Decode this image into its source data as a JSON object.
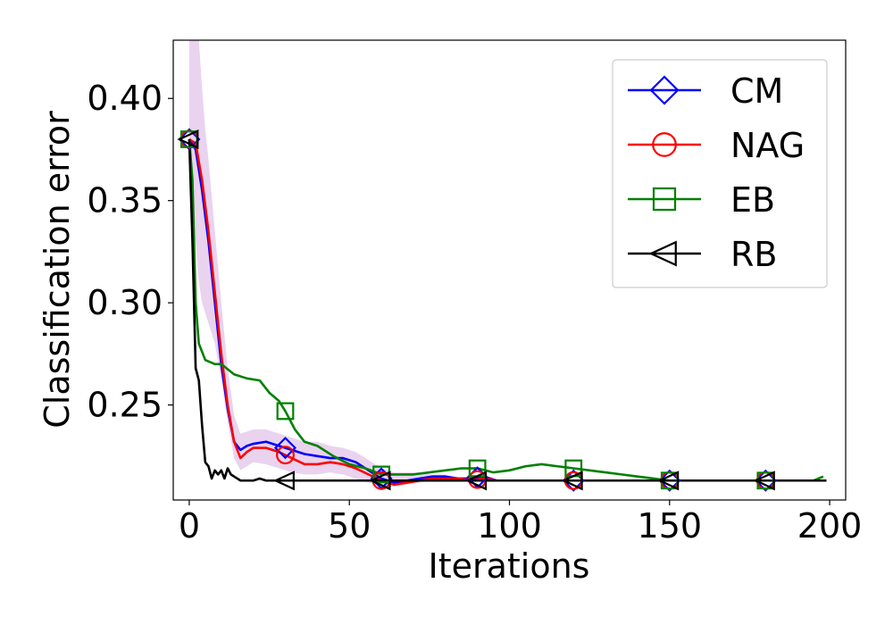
{
  "chart_data": {
    "type": "line",
    "xlabel": "Iterations",
    "ylabel": "Classification error",
    "xlim": [
      -5,
      205
    ],
    "ylim": [
      0.2035,
      0.4285
    ],
    "xticks": [
      0,
      50,
      100,
      150,
      200
    ],
    "yticks": [
      0.25,
      0.3,
      0.35,
      0.4
    ],
    "xtick_labels": [
      "0",
      "50",
      "100",
      "150",
      "200"
    ],
    "ytick_labels": [
      "0.25",
      "0.30",
      "0.35",
      "0.40"
    ],
    "grid": false,
    "legend_position": "top-right",
    "series": [
      {
        "name": "CM",
        "color": "#0000ff",
        "marker": "diamond",
        "marker_x": [
          0,
          30,
          60,
          90,
          120,
          150,
          180
        ],
        "x": [
          0,
          2,
          4,
          6,
          8,
          10,
          12,
          14,
          16,
          18,
          20,
          24,
          28,
          32,
          36,
          40,
          44,
          48,
          52,
          56,
          60,
          64,
          68,
          72,
          76,
          80,
          84,
          88,
          92,
          96,
          100,
          110,
          120,
          130,
          140,
          150,
          160,
          170,
          180,
          190,
          198
        ],
        "y": [
          0.38,
          0.375,
          0.355,
          0.33,
          0.3,
          0.27,
          0.248,
          0.232,
          0.228,
          0.23,
          0.231,
          0.232,
          0.23,
          0.228,
          0.226,
          0.225,
          0.224,
          0.224,
          0.222,
          0.218,
          0.214,
          0.212,
          0.213,
          0.214,
          0.215,
          0.215,
          0.214,
          0.214,
          0.215,
          0.213,
          0.213,
          0.213,
          0.213,
          0.213,
          0.213,
          0.213,
          0.213,
          0.213,
          0.213,
          0.213,
          0.213
        ]
      },
      {
        "name": "NAG",
        "color": "#ff0000",
        "marker": "circle",
        "marker_x": [
          0,
          30,
          60,
          90,
          120,
          150,
          180
        ],
        "x": [
          0,
          2,
          4,
          6,
          8,
          10,
          12,
          14,
          16,
          18,
          20,
          24,
          28,
          32,
          36,
          40,
          44,
          48,
          52,
          56,
          60,
          64,
          68,
          72,
          76,
          80,
          84,
          88,
          92,
          96,
          100,
          110,
          120,
          130,
          140,
          150,
          160,
          170,
          180,
          190,
          198
        ],
        "y": [
          0.38,
          0.378,
          0.36,
          0.335,
          0.305,
          0.275,
          0.25,
          0.232,
          0.224,
          0.227,
          0.229,
          0.229,
          0.227,
          0.224,
          0.221,
          0.221,
          0.222,
          0.221,
          0.219,
          0.216,
          0.213,
          0.211,
          0.212,
          0.213,
          0.214,
          0.214,
          0.214,
          0.213,
          0.214,
          0.213,
          0.213,
          0.213,
          0.213,
          0.213,
          0.213,
          0.213,
          0.213,
          0.213,
          0.213,
          0.213,
          0.213
        ]
      },
      {
        "name": "EB",
        "color": "#008000",
        "marker": "square",
        "marker_x": [
          0,
          30,
          60,
          90,
          120,
          150,
          180
        ],
        "x": [
          0,
          1,
          2,
          3,
          5,
          8,
          10,
          14,
          18,
          22,
          25,
          28,
          30,
          33,
          36,
          40,
          45,
          50,
          55,
          60,
          65,
          70,
          75,
          80,
          85,
          90,
          95,
          100,
          105,
          110,
          115,
          120,
          125,
          130,
          135,
          140,
          145,
          150,
          160,
          170,
          180,
          190,
          195,
          198
        ],
        "y": [
          0.38,
          0.36,
          0.3,
          0.28,
          0.272,
          0.27,
          0.27,
          0.265,
          0.263,
          0.262,
          0.256,
          0.252,
          0.247,
          0.238,
          0.232,
          0.23,
          0.225,
          0.221,
          0.219,
          0.216,
          0.216,
          0.216,
          0.217,
          0.218,
          0.219,
          0.219,
          0.217,
          0.218,
          0.22,
          0.221,
          0.22,
          0.219,
          0.218,
          0.217,
          0.216,
          0.215,
          0.214,
          0.213,
          0.213,
          0.213,
          0.213,
          0.213,
          0.213,
          0.215
        ]
      },
      {
        "name": "RB",
        "color": "#000000",
        "marker": "triangle-left",
        "marker_x": [
          0,
          30,
          60,
          90,
          120,
          150,
          180
        ],
        "x": [
          0,
          1,
          2,
          3,
          4,
          5,
          6,
          7,
          8,
          9,
          10,
          11,
          12,
          13,
          14,
          15,
          16,
          18,
          20,
          22,
          24,
          26,
          30,
          40,
          60,
          80,
          100,
          120,
          140,
          160,
          180,
          199
        ],
        "y": [
          0.38,
          0.33,
          0.268,
          0.262,
          0.24,
          0.222,
          0.22,
          0.214,
          0.218,
          0.216,
          0.218,
          0.214,
          0.219,
          0.216,
          0.215,
          0.214,
          0.213,
          0.213,
          0.213,
          0.214,
          0.213,
          0.213,
          0.213,
          0.213,
          0.213,
          0.213,
          0.213,
          0.213,
          0.213,
          0.213,
          0.213,
          0.213
        ]
      }
    ],
    "band": {
      "color": "#c080d0",
      "x": [
        0,
        1,
        2,
        3,
        4,
        5,
        6,
        8,
        10,
        12,
        14,
        16,
        18,
        20,
        24,
        28,
        32,
        36,
        40,
        44,
        48,
        52,
        56,
        60,
        64,
        68,
        72,
        76,
        80
      ],
      "y_low": [
        0.36,
        0.34,
        0.33,
        0.31,
        0.3,
        0.295,
        0.29,
        0.28,
        0.262,
        0.242,
        0.224,
        0.218,
        0.22,
        0.222,
        0.221,
        0.219,
        0.217,
        0.216,
        0.216,
        0.217,
        0.216,
        0.214,
        0.212,
        0.21,
        0.21,
        0.211,
        0.212,
        0.213,
        0.213
      ],
      "y_high": [
        0.4285,
        0.4285,
        0.4285,
        0.4285,
        0.405,
        0.385,
        0.37,
        0.335,
        0.3,
        0.268,
        0.245,
        0.236,
        0.237,
        0.238,
        0.238,
        0.236,
        0.234,
        0.232,
        0.232,
        0.23,
        0.229,
        0.227,
        0.223,
        0.219,
        0.217,
        0.217,
        0.217,
        0.216,
        0.216
      ]
    }
  }
}
